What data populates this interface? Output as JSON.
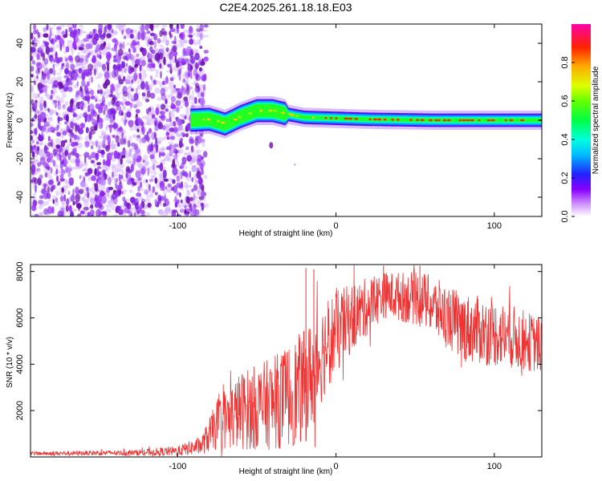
{
  "chart_data": [
    {
      "type": "heatmap",
      "title": "C2E4.2025.261.18.18.E03",
      "xlabel": "Height of straight line (km)",
      "ylabel": "Frequency (Hz)",
      "xlim": [
        -193,
        130
      ],
      "ylim": [
        -50,
        50
      ],
      "x_ticks": [
        -100,
        0,
        100
      ],
      "x_tick_labels": [
        "-100",
        "0",
        "100"
      ],
      "y_ticks": [
        -40,
        -20,
        0,
        20,
        40
      ],
      "y_tick_labels": [
        "-40",
        "-20",
        "0",
        "20",
        "40"
      ],
      "noise_region_x": [
        -193,
        -82
      ],
      "signal_band": [
        {
          "x": -92,
          "f": 0
        },
        {
          "x": -80,
          "f": 0.5
        },
        {
          "x": -70,
          "f": -2
        },
        {
          "x": -60,
          "f": 2
        },
        {
          "x": -50,
          "f": 5
        },
        {
          "x": -40,
          "f": 5
        },
        {
          "x": -30,
          "f": 3
        },
        {
          "x": -20,
          "f": 1.5
        },
        {
          "x": 0,
          "f": 1
        },
        {
          "x": 20,
          "f": 0.5
        },
        {
          "x": 60,
          "f": 0
        },
        {
          "x": 130,
          "f": 0
        }
      ],
      "colorbar": {
        "label": "Normalized spectral amplitude",
        "range": [
          0,
          1
        ],
        "ticks": [
          0,
          0.2,
          0.4,
          0.6,
          0.8
        ],
        "tick_labels": [
          "0.0",
          "0.2",
          "0.4",
          "0.6",
          "0.8"
        ]
      }
    },
    {
      "type": "line",
      "xlabel": "Height of straight line (km)",
      "ylabel": "SNR (10 * v/v)",
      "xlim": [
        -193,
        130
      ],
      "ylim": [
        0,
        8300
      ],
      "x_ticks": [
        -100,
        0,
        100
      ],
      "x_tick_labels": [
        "-100",
        "0",
        "100"
      ],
      "y_ticks": [
        2000,
        4000,
        6000,
        8000
      ],
      "y_tick_labels": [
        "2000",
        "4000",
        "6000",
        "8000"
      ],
      "color": "#ee3333",
      "envelope": [
        {
          "x": -193,
          "mean": 150,
          "amp": 80
        },
        {
          "x": -130,
          "mean": 180,
          "amp": 120
        },
        {
          "x": -100,
          "mean": 250,
          "amp": 220
        },
        {
          "x": -85,
          "mean": 500,
          "amp": 400
        },
        {
          "x": -75,
          "mean": 1400,
          "amp": 1100
        },
        {
          "x": -60,
          "mean": 2000,
          "amp": 1700
        },
        {
          "x": -40,
          "mean": 2300,
          "amp": 2000
        },
        {
          "x": -20,
          "mean": 3000,
          "amp": 2500
        },
        {
          "x": -5,
          "mean": 5000,
          "amp": 2000
        },
        {
          "x": 10,
          "mean": 6000,
          "amp": 1500
        },
        {
          "x": 30,
          "mean": 7000,
          "amp": 1000
        },
        {
          "x": 55,
          "mean": 6800,
          "amp": 1200
        },
        {
          "x": 80,
          "mean": 5600,
          "amp": 1500
        },
        {
          "x": 110,
          "mean": 5200,
          "amp": 1400
        },
        {
          "x": 130,
          "mean": 4800,
          "amp": 1200
        }
      ],
      "spikes": [
        {
          "x": -19,
          "y": 8150
        },
        {
          "x": -14,
          "y": 8100
        },
        {
          "x": 30,
          "y": 8250
        },
        {
          "x": 53,
          "y": 8250
        }
      ]
    }
  ]
}
